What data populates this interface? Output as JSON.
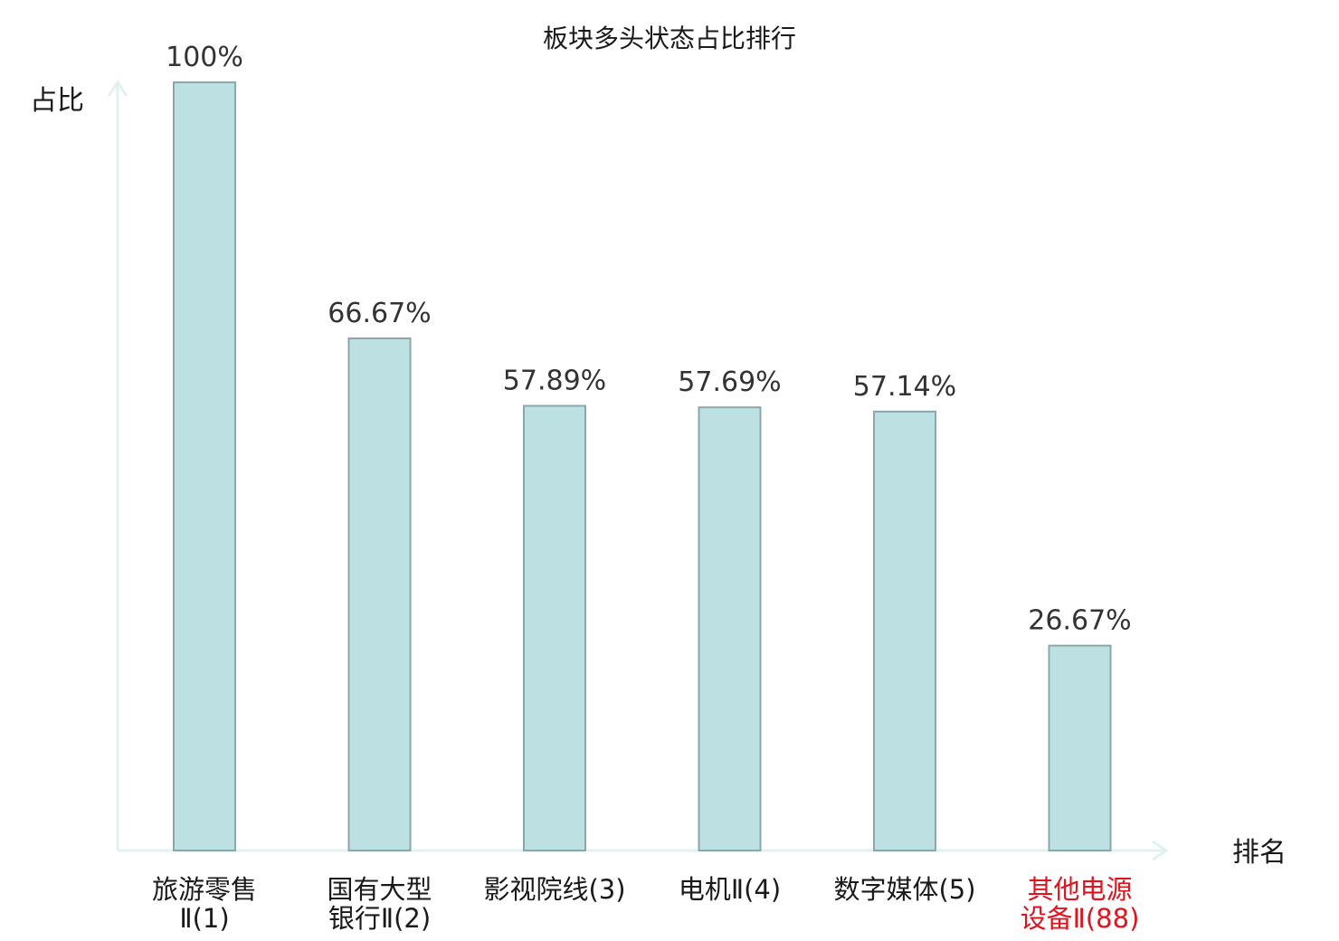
{
  "chart_data": {
    "type": "bar",
    "title": "板块多头状态占比排行",
    "ylabel": "占比",
    "xlabel": "排名",
    "ylim": [
      0,
      100
    ],
    "grid": false,
    "categories": [
      [
        "旅游零售",
        "Ⅱ(1)"
      ],
      [
        "国有大型",
        "银行Ⅱ(2)"
      ],
      [
        "影视院线(3)"
      ],
      [
        "电机Ⅱ(4)"
      ],
      [
        "数字媒体(5)"
      ],
      [
        "其他电源",
        "设备Ⅱ(88)"
      ]
    ],
    "values": [
      100,
      66.67,
      57.89,
      57.69,
      57.14,
      26.67
    ],
    "value_labels": [
      "100%",
      "66.67%",
      "57.89%",
      "57.69%",
      "57.14%",
      "26.67%"
    ],
    "highlight_index": 5,
    "colors": {
      "bar_fill": "#bde0e3",
      "bar_stroke": "#8aa8ab",
      "axis": "#e0f2f0",
      "highlight_text": "#e0141e"
    }
  }
}
